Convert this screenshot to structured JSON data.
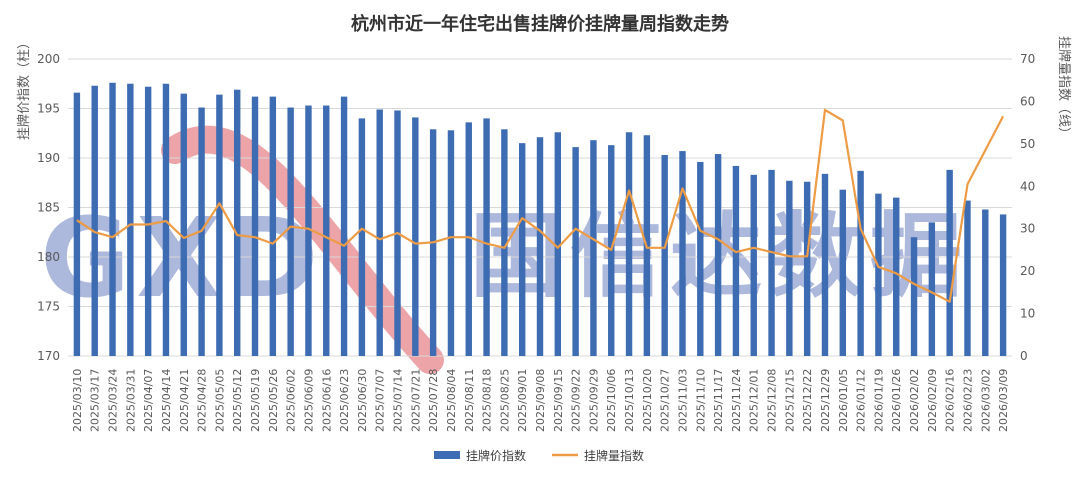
{
  "colors": {
    "bar": "#3E6CB3",
    "line": "#ED9C45",
    "grid": "#D9D9D9",
    "watermark": "#6A7FC0",
    "watermark_arc": "#E05B63"
  },
  "watermark": {
    "letters": "GXD",
    "brand": "国信达数据"
  },
  "chart_data": {
    "type": "bar",
    "title": "杭州市近一年住宅出售挂牌价挂牌量周指数走势",
    "ylabel": "挂牌价指数（柱）",
    "y2label": "挂牌量指数（线）",
    "ylim": [
      170,
      200
    ],
    "y2lim": [
      0,
      70
    ],
    "yticks": [
      "170",
      "175",
      "180",
      "185",
      "190",
      "195",
      "200"
    ],
    "y2ticks": [
      "0",
      "10",
      "20",
      "30",
      "40",
      "50",
      "60",
      "70"
    ],
    "grid": true,
    "legend_position": "bottom",
    "categories": [
      "2025/03/10",
      "2025/03/17",
      "2025/03/24",
      "2025/03/31",
      "2025/04/07",
      "2025/04/14",
      "2025/04/21",
      "2025/04/28",
      "2025/05/05",
      "2025/05/12",
      "2025/05/19",
      "2025/05/26",
      "2025/06/02",
      "2025/06/09",
      "2025/06/16",
      "2025/06/23",
      "2025/06/30",
      "2025/07/07",
      "2025/07/14",
      "2025/07/21",
      "2025/07/28",
      "2025/08/04",
      "2025/08/11",
      "2025/08/18",
      "2025/08/25",
      "2025/09/01",
      "2025/09/08",
      "2025/09/15",
      "2025/09/22",
      "2025/09/29",
      "2025/10/06",
      "2025/10/13",
      "2025/10/20",
      "2025/10/27",
      "2025/11/03",
      "2025/11/10",
      "2025/11/17",
      "2025/11/24",
      "2025/12/01",
      "2025/12/08",
      "2025/12/15",
      "2025/12/22",
      "2025/12/29",
      "2026/01/05",
      "2026/01/12",
      "2026/01/19",
      "2026/01/26",
      "2026/02/02",
      "2026/02/09",
      "2026/02/16",
      "2026/02/23",
      "2026/03/02",
      "2026/03/09"
    ],
    "series": [
      {
        "name": "挂牌价指数",
        "type": "bar",
        "axis": "left",
        "values": [
          196.6,
          197.3,
          197.6,
          197.5,
          197.2,
          197.5,
          196.5,
          195.1,
          196.4,
          196.9,
          196.2,
          196.2,
          195.1,
          195.3,
          195.3,
          196.2,
          194.0,
          194.9,
          194.8,
          194.1,
          192.9,
          192.8,
          193.6,
          194.0,
          192.9,
          191.5,
          192.1,
          192.6,
          191.1,
          191.8,
          191.3,
          192.6,
          192.3,
          190.3,
          190.7,
          189.6,
          190.4,
          189.2,
          188.3,
          188.8,
          187.7,
          187.6,
          188.4,
          186.8,
          188.7,
          186.4,
          186.0,
          182.0,
          183.5,
          188.8,
          185.7,
          184.8,
          184.3
        ]
      },
      {
        "name": "挂牌量指数",
        "type": "line",
        "axis": "right",
        "values": [
          32,
          29.2,
          28,
          31,
          31,
          31.8,
          27.8,
          29.5,
          36,
          28.5,
          28,
          26.5,
          30.5,
          30,
          28,
          26,
          30,
          27.5,
          29,
          26.5,
          26.8,
          28,
          28,
          26.5,
          25.5,
          32.5,
          29.5,
          25.5,
          30,
          27.5,
          25,
          39,
          25.5,
          25.5,
          39.5,
          29.5,
          27.5,
          24.5,
          25.5,
          24.5,
          23.5,
          23.5,
          58,
          55.5,
          30,
          21,
          19.5,
          17,
          15,
          12.8,
          40.5,
          48.5,
          56.5
        ]
      }
    ]
  }
}
